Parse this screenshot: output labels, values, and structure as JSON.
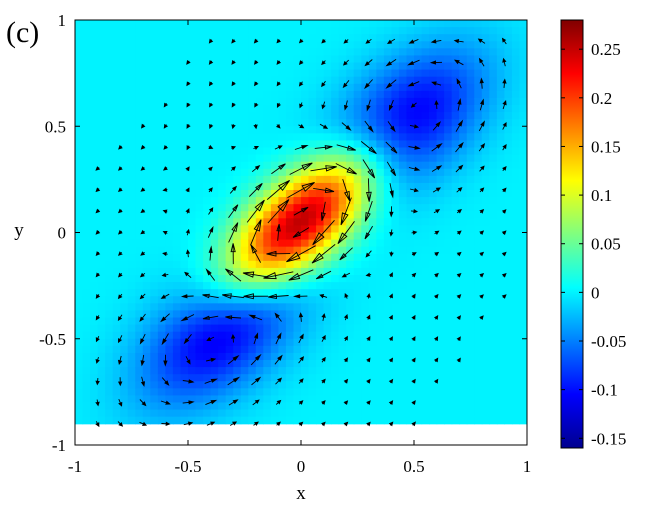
{
  "panel_label": "(c)",
  "chart_data": {
    "type": "heatmap",
    "subtype": "filled contour with quiver (vector) overlay",
    "title": "",
    "xlabel": "x",
    "ylabel": "y",
    "xlim": [
      -1,
      1
    ],
    "ylim": [
      -1,
      1
    ],
    "x_ticks": [
      "-1",
      "-0.5",
      "0",
      "0.5",
      "1"
    ],
    "y_ticks": [
      "1",
      "0.5",
      "0",
      "-0.5",
      "-1"
    ],
    "grid": false,
    "colorbar": {
      "colormap": "jet",
      "range": [
        -0.16,
        0.28
      ],
      "tick_labels": [
        "0.25",
        "0.2",
        "0.15",
        "0.1",
        "0.05",
        "0",
        "-0.05",
        "-0.1",
        "-0.15"
      ],
      "tick_values": [
        0.25,
        0.2,
        0.15,
        0.1,
        0.05,
        0,
        -0.05,
        -0.1,
        -0.15
      ]
    },
    "field_features": [
      {
        "kind": "maximum",
        "x": 0.0,
        "y": 0.05,
        "value": 0.28
      },
      {
        "kind": "minimum",
        "x": 0.45,
        "y": 0.5,
        "value": -0.13
      },
      {
        "kind": "minimum",
        "x": -0.35,
        "y": -0.45,
        "value": -0.13
      }
    ],
    "field_extent": {
      "x": [
        -1,
        1
      ],
      "y": [
        -0.9,
        1
      ]
    },
    "vector_grid_step": 0.1,
    "vector_field": "circulation around the two minima and along the ridge of the maximum"
  }
}
